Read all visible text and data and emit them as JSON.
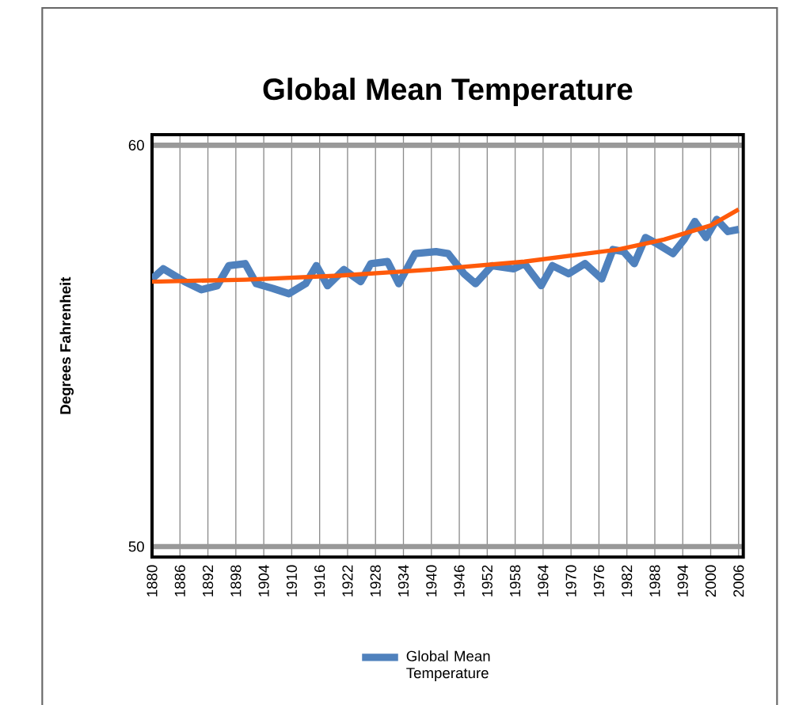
{
  "chart_data": {
    "type": "line",
    "title": "Global Mean Temperature",
    "ylabel": "Degrees Fahrenheit",
    "xlim": [
      1880,
      2007
    ],
    "ylim": [
      50,
      60
    ],
    "xticks": [
      1880,
      1886,
      1892,
      1898,
      1904,
      1910,
      1916,
      1922,
      1928,
      1934,
      1940,
      1946,
      1952,
      1958,
      1964,
      1970,
      1976,
      1982,
      1988,
      1994,
      2000,
      2006
    ],
    "yticks": [
      50,
      60
    ],
    "grid": true,
    "legend": "bottom",
    "marker": "none",
    "line_style": "solid",
    "series": [
      {
        "name": "Global Mean Temperature",
        "color": "#4f81bd",
        "x": [
          1880,
          1882.4,
          1887,
          1890.6,
          1894,
          1896.5,
          1900,
          1902.4,
          1906,
          1909.4,
          1913,
          1915.3,
          1917.7,
          1921.2,
          1924.8,
          1927,
          1930.6,
          1933,
          1936.5,
          1941,
          1943.6,
          1947,
          1949.5,
          1953,
          1957.7,
          1960,
          1963.6,
          1966,
          1969.5,
          1973,
          1976.6,
          1979,
          1981.3,
          1983.6,
          1986,
          1988.4,
          1991.9,
          1994.3,
          1996.6,
          1999,
          2001.3,
          2003.7,
          2006
        ],
        "values": [
          56.67,
          56.92,
          56.6,
          56.4,
          56.5,
          57.0,
          57.05,
          56.55,
          56.43,
          56.3,
          56.55,
          57.0,
          56.5,
          56.9,
          56.6,
          57.05,
          57.1,
          56.55,
          57.3,
          57.35,
          57.3,
          56.8,
          56.55,
          57.0,
          56.92,
          57.05,
          56.5,
          57.0,
          56.8,
          57.05,
          56.67,
          57.4,
          57.35,
          57.05,
          57.7,
          57.55,
          57.3,
          57.65,
          58.1,
          57.7,
          58.15,
          57.85,
          57.9
        ]
      },
      {
        "color": "#ff5a0a",
        "x": [
          1880,
          1900,
          1920,
          1940,
          1960,
          1980,
          1990,
          2000,
          2006
        ],
        "values": [
          56.6,
          56.65,
          56.75,
          56.9,
          57.1,
          57.4,
          57.65,
          58.0,
          58.4
        ]
      }
    ]
  }
}
